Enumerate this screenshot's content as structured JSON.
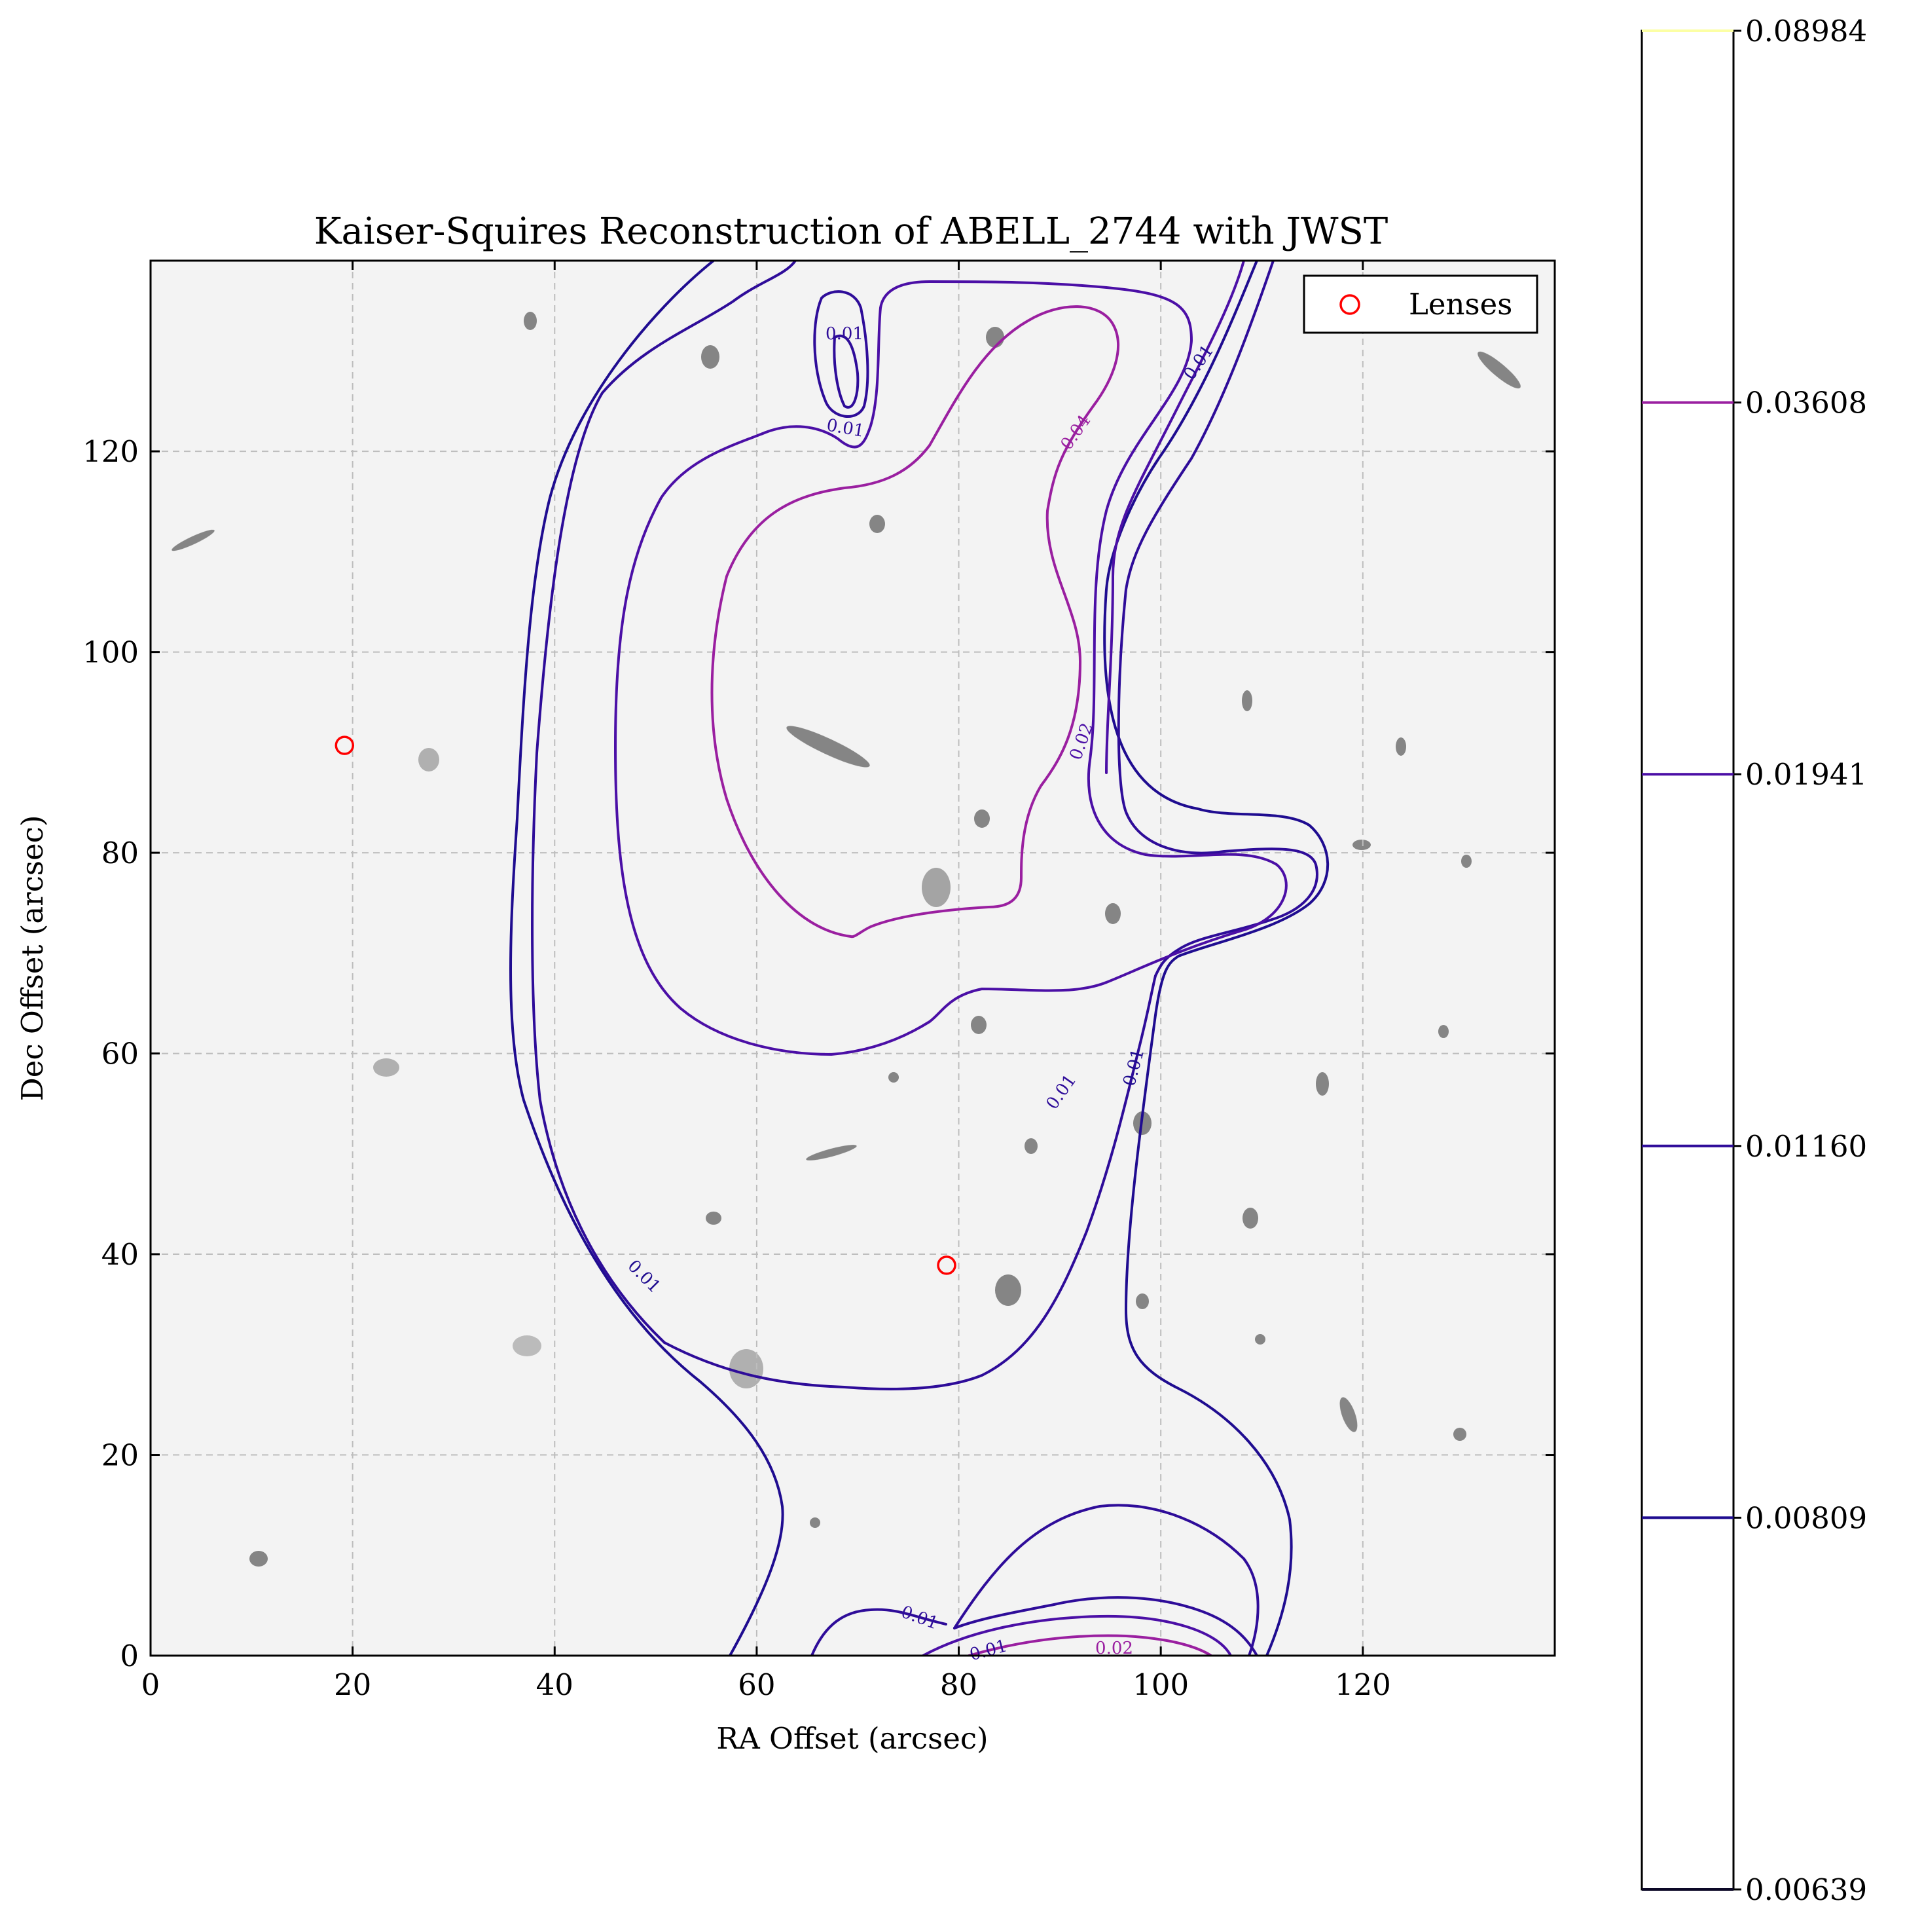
{
  "chart_data": {
    "type": "contour",
    "title": "Kaiser-Squires Reconstruction of ABELL_2744 with JWST",
    "xlabel": "RA Offset (arcsec)",
    "ylabel": "Dec Offset (arcsec)",
    "xlim": [
      0,
      139
    ],
    "ylim": [
      0,
      139
    ],
    "xticks": [
      0,
      20,
      40,
      60,
      80,
      100,
      120
    ],
    "yticks": [
      0,
      20,
      40,
      60,
      80,
      100,
      120
    ],
    "grid": true,
    "background": "grayscale JWST image of galaxy field",
    "legend": {
      "position": "upper right",
      "entries": [
        "Lenses"
      ]
    },
    "lenses": [
      {
        "x": 19.2,
        "y": 90.7
      },
      {
        "x": 78.8,
        "y": 38.9
      }
    ],
    "contour_levels": [
      0.00809,
      0.0116,
      0.01941,
      0.03608
    ],
    "contour_label_texts": [
      "0.01",
      "0.01",
      "0.01",
      "0.01",
      "0.01",
      "0.01",
      "0.01",
      "0.01",
      "0.02",
      "0.02",
      "0.04"
    ],
    "colorbar": {
      "tick_labels": [
        "0.08984",
        "0.03608",
        "0.01941",
        "0.01160",
        "0.00809",
        "0.00639"
      ],
      "values": [
        0.08984,
        0.03608,
        0.01941,
        0.0116,
        0.00809,
        0.00639
      ]
    },
    "colors": {
      "level_0_00809": "#1f0c90",
      "level_0_0116": "#2e0c99",
      "level_0_01941": "#4b0fa6",
      "level_0_03608": "#9a1fa0",
      "level_0_08984": "#fcffa4",
      "level_0_00639": "#0c0826",
      "lens_marker": "#ff0000"
    }
  }
}
